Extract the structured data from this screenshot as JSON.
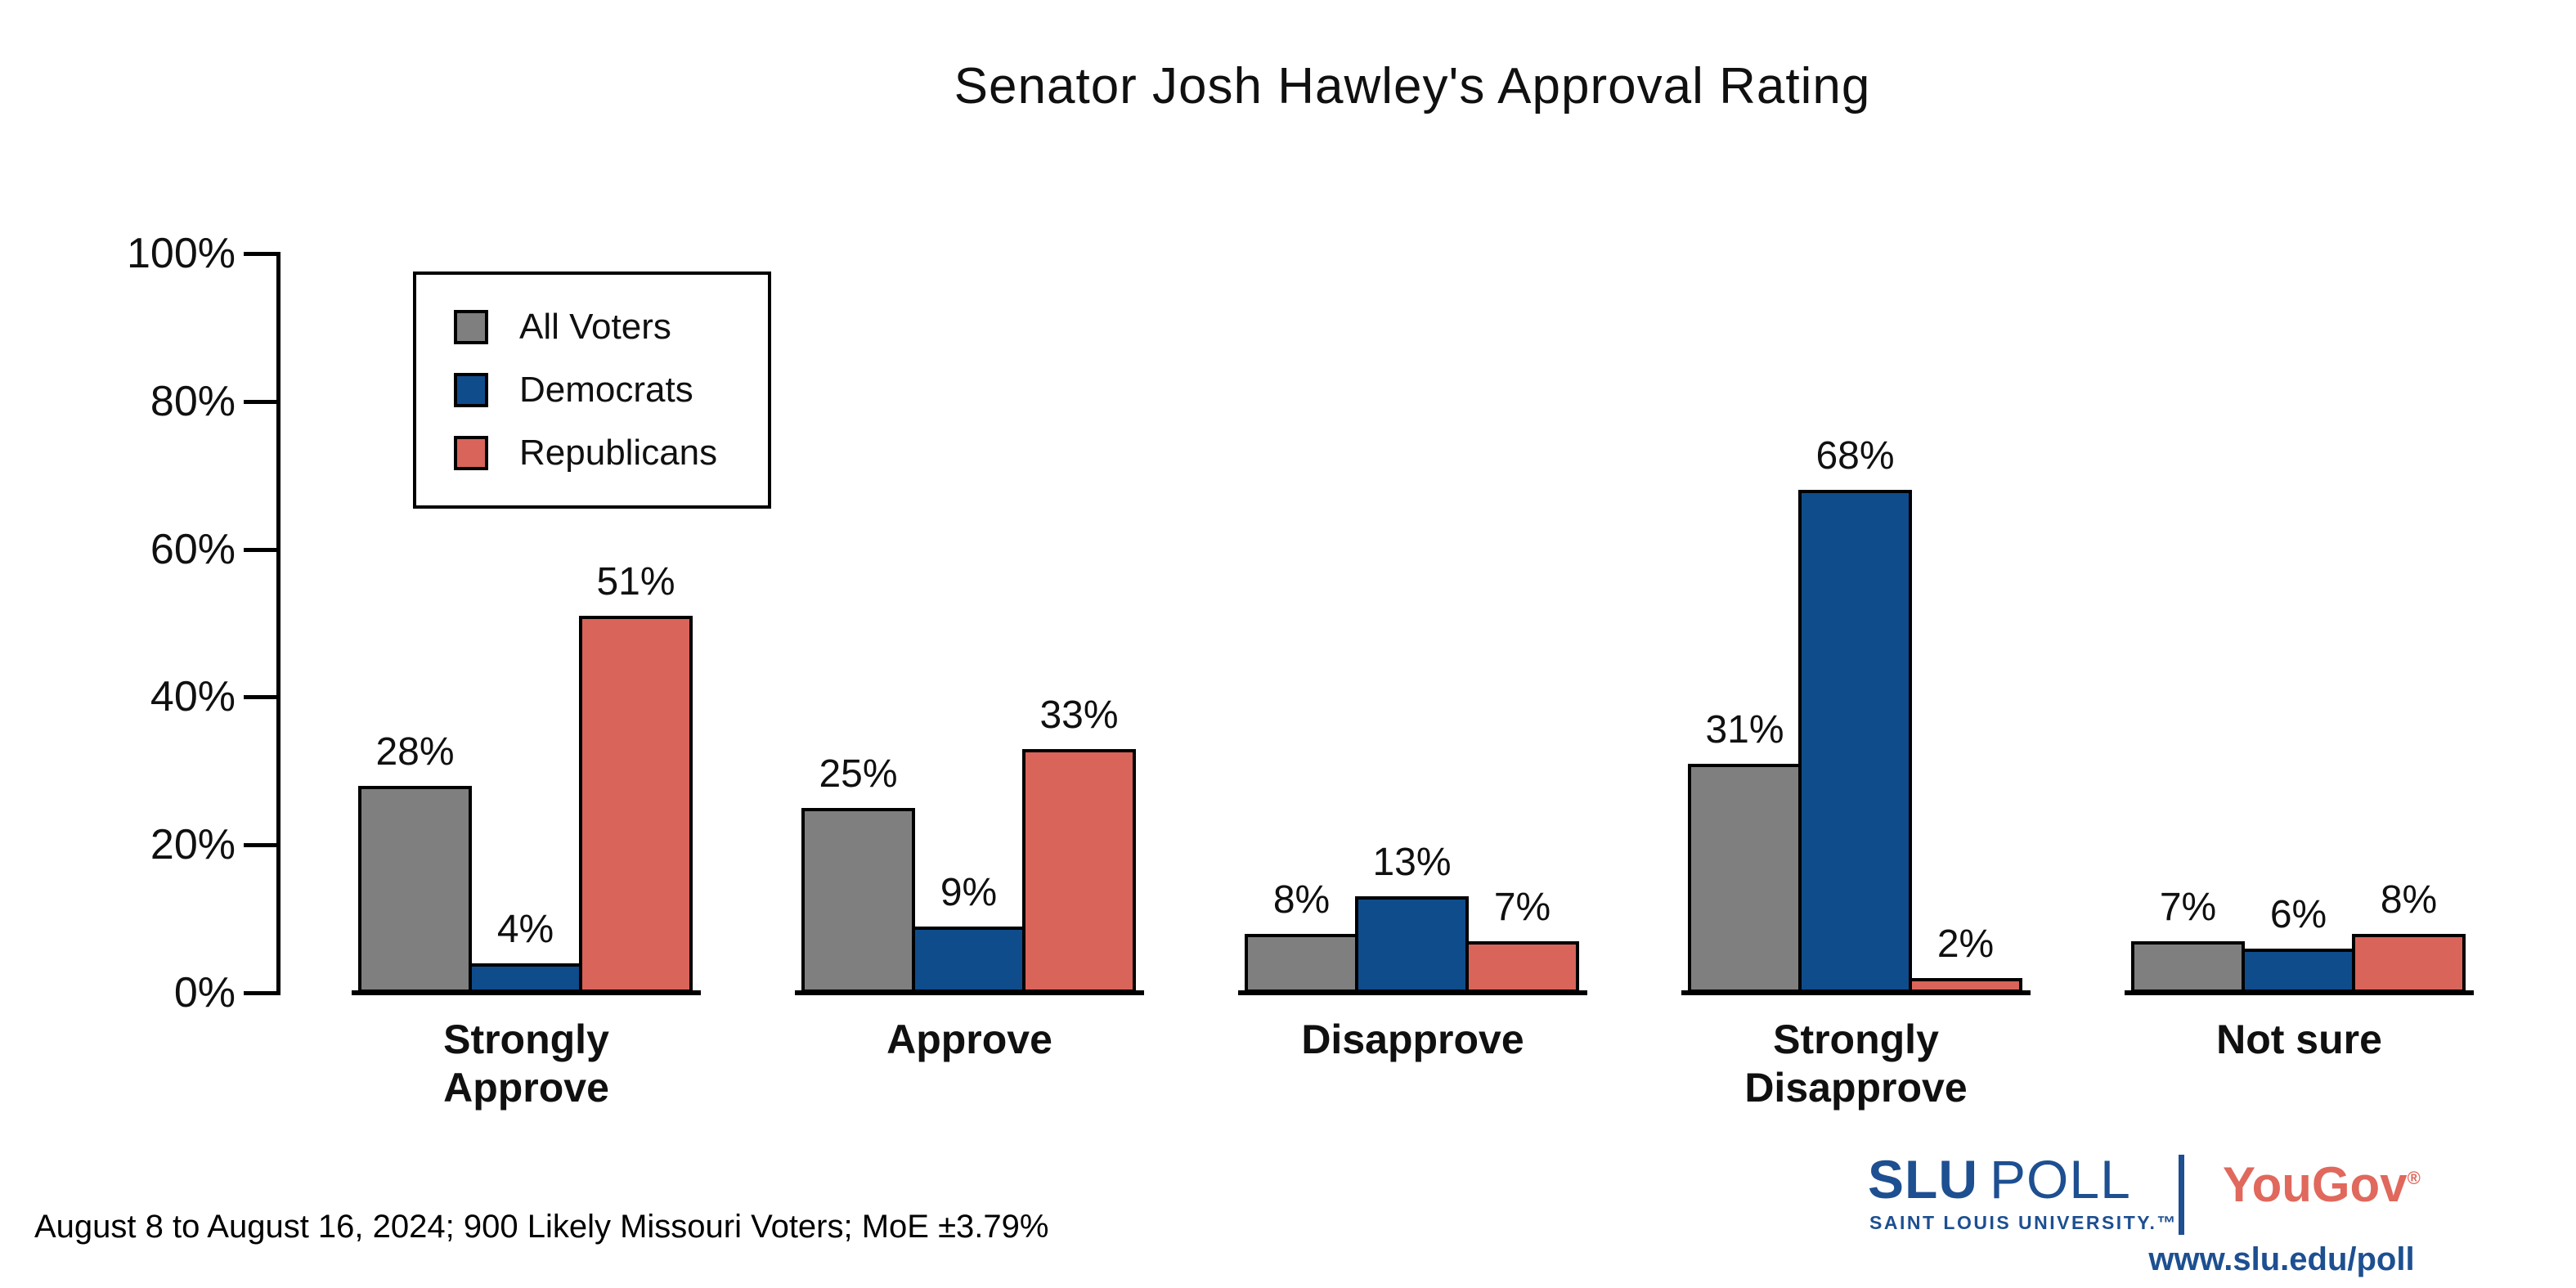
{
  "title": "Senator Josh Hawley's Approval Rating",
  "chart_data": {
    "type": "bar",
    "title": "Senator Josh Hawley's Approval Rating",
    "categories": [
      "Strongly\nApprove",
      "Approve",
      "Disapprove",
      "Strongly\nDisapprove",
      "Not sure"
    ],
    "series": [
      {
        "name": "All Voters",
        "color": "#7f7f7f",
        "values": [
          28,
          25,
          8,
          31,
          7
        ]
      },
      {
        "name": "Democrats",
        "color": "#0f4c8c",
        "values": [
          4,
          9,
          13,
          68,
          6
        ]
      },
      {
        "name": "Republicans",
        "color": "#d9645a",
        "values": [
          51,
          33,
          7,
          2,
          8
        ]
      }
    ],
    "value_label_format": "{v}%",
    "xlabel": "",
    "ylabel": "",
    "ylim": [
      0,
      100
    ],
    "yticks": [
      0,
      20,
      40,
      60,
      80,
      100
    ],
    "ytick_format": "{v}%",
    "grid": false,
    "legend_position": "top-left",
    "bar_outline_color": "#000000"
  },
  "footer": {
    "note": "August 8 to August 16, 2024; 900 Likely Missouri Voters; MoE ±3.79%"
  },
  "branding": {
    "slu_word": "SLU",
    "poll_word": "POLL",
    "tagline": "SAINT LOUIS UNIVERSITY.™",
    "yougov": "YouGov",
    "registered_mark": "®",
    "url": "www.slu.edu/poll",
    "slu_color": "#1d4f91",
    "yougov_color": "#e0685c"
  }
}
